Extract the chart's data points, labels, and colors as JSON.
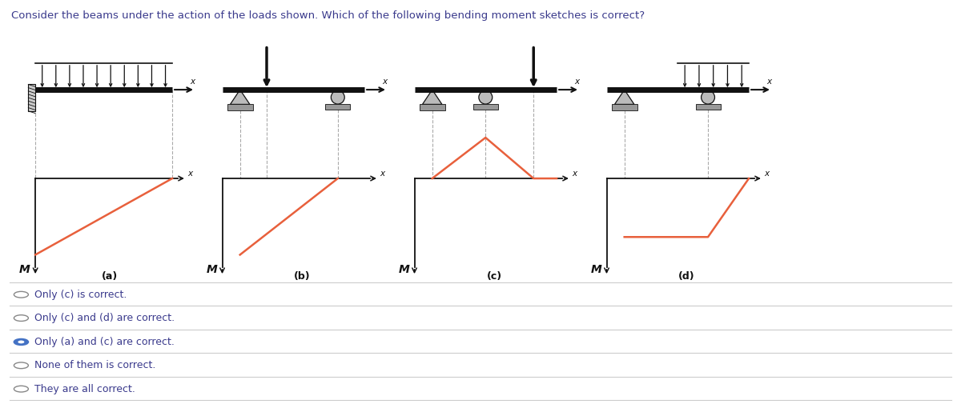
{
  "title": "Consider the beams under the action of the loads shown. Which of the following bending moment sketches is correct?",
  "title_color": "#3a3a8c",
  "title_fontsize": 9.5,
  "options": [
    {
      "text": "Only (c) is correct.",
      "selected": false
    },
    {
      "text": "Only (c) and (d) are correct.",
      "selected": false
    },
    {
      "text": "Only (a) and (c) are correct.",
      "selected": true
    },
    {
      "text": "None of them is correct.",
      "selected": false
    },
    {
      "text": "They are all correct.",
      "selected": false
    }
  ],
  "option_color": "#3a3a8c",
  "option_fontsize": 9,
  "bg_color": "#ffffff",
  "beam_color": "#111111",
  "moment_color": "#e8603c",
  "label_fontsize": 9,
  "diagram_labels": [
    "(a)",
    "(b)",
    "(c)",
    "(d)"
  ]
}
